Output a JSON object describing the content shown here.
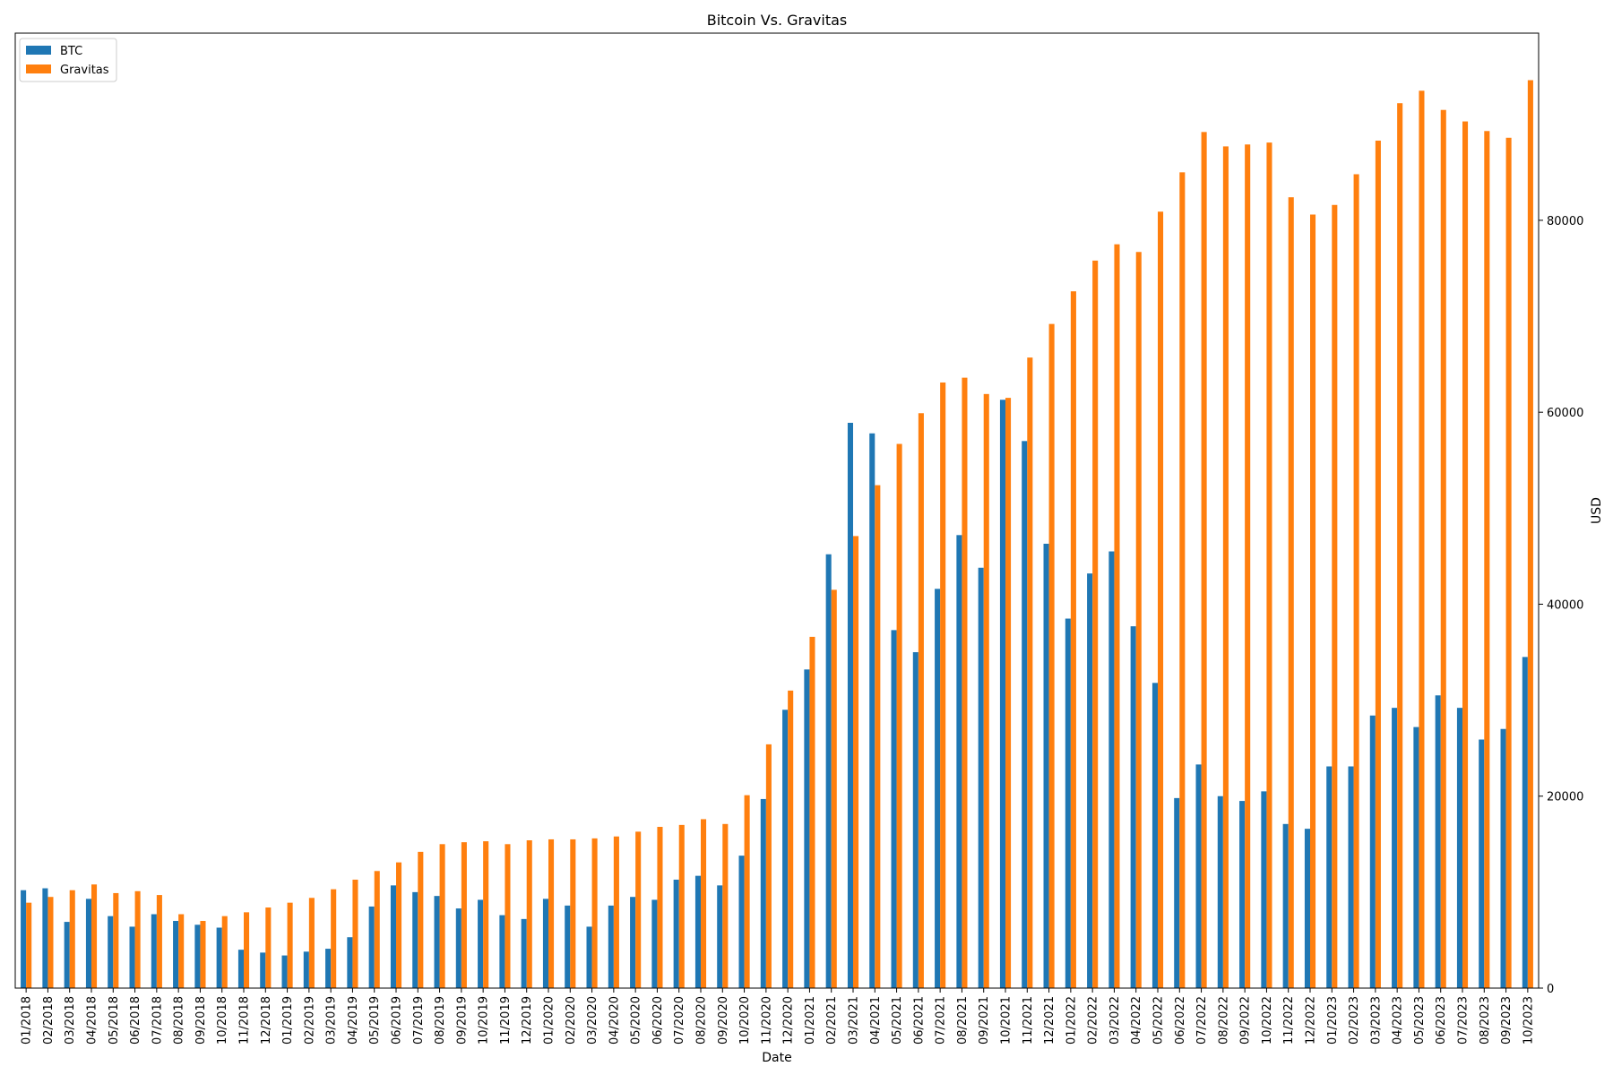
{
  "chart_data": {
    "type": "bar",
    "title": "Bitcoin Vs. Gravitas",
    "xlabel": "Date",
    "ylabel": "USD",
    "ylim": [
      0,
      99500
    ],
    "yticks": [
      0,
      20000,
      40000,
      60000,
      80000
    ],
    "y_axis_side": "right",
    "grid": false,
    "legend_position": "top-left",
    "categories": [
      "01/2018",
      "02/2018",
      "03/2018",
      "04/2018",
      "05/2018",
      "06/2018",
      "07/2018",
      "08/2018",
      "09/2018",
      "10/2018",
      "11/2018",
      "12/2018",
      "01/2019",
      "02/2019",
      "03/2019",
      "04/2019",
      "05/2019",
      "06/2019",
      "07/2019",
      "08/2019",
      "09/2019",
      "10/2019",
      "11/2019",
      "12/2019",
      "01/2020",
      "02/2020",
      "03/2020",
      "04/2020",
      "05/2020",
      "06/2020",
      "07/2020",
      "08/2020",
      "09/2020",
      "10/2020",
      "11/2020",
      "12/2020",
      "01/2021",
      "02/2021",
      "03/2021",
      "04/2021",
      "05/2021",
      "06/2021",
      "07/2021",
      "08/2021",
      "09/2021",
      "10/2021",
      "11/2021",
      "12/2021",
      "01/2022",
      "02/2022",
      "03/2022",
      "04/2022",
      "05/2022",
      "06/2022",
      "07/2022",
      "08/2022",
      "09/2022",
      "10/2022",
      "11/2022",
      "12/2022",
      "01/2023",
      "02/2023",
      "03/2023",
      "04/2023",
      "05/2023",
      "06/2023",
      "07/2023",
      "08/2023",
      "09/2023",
      "10/2023"
    ],
    "series": [
      {
        "name": "BTC",
        "color": "#1f77b4",
        "values": [
          10200,
          10400,
          6900,
          9300,
          7500,
          6400,
          7700,
          7000,
          6600,
          6300,
          4000,
          3700,
          3400,
          3800,
          4100,
          5300,
          8500,
          10700,
          10000,
          9600,
          8300,
          9200,
          7600,
          7200,
          9300,
          8600,
          6400,
          8600,
          9500,
          9200,
          11300,
          11700,
          10700,
          13800,
          19700,
          29000,
          33200,
          45200,
          58900,
          57800,
          37300,
          35000,
          41600,
          47200,
          43800,
          61300,
          57000,
          46300,
          38500,
          43200,
          45500,
          37700,
          31800,
          19800,
          23300,
          20000,
          19500,
          20500,
          17100,
          16600,
          23100,
          23100,
          28400,
          29200,
          27200,
          30500,
          29200,
          25900,
          27000,
          34500
        ]
      },
      {
        "name": "Gravitas",
        "color": "#ff7f0e",
        "values": [
          8900,
          9500,
          10200,
          10800,
          9900,
          10100,
          9700,
          7700,
          7000,
          7500,
          7900,
          8400,
          8900,
          9400,
          10300,
          11300,
          12200,
          13100,
          14200,
          15000,
          15200,
          15300,
          15000,
          15400,
          15500,
          15500,
          15600,
          15800,
          16300,
          16800,
          17000,
          17600,
          17100,
          20100,
          25400,
          31000,
          36600,
          41500,
          47100,
          52400,
          56700,
          59900,
          63100,
          63600,
          61900,
          61500,
          65700,
          69200,
          72600,
          75800,
          77500,
          76700,
          80900,
          85000,
          89200,
          87700,
          87900,
          88100,
          82400,
          80600,
          81600,
          84800,
          88300,
          92200,
          93500,
          91500,
          90300,
          89300,
          88600,
          94600
        ]
      }
    ]
  }
}
